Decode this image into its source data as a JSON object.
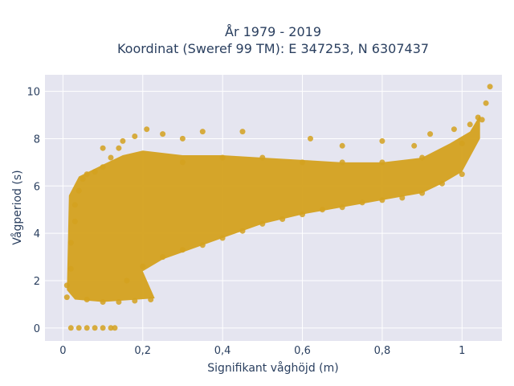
{
  "chart_data": {
    "type": "scatter",
    "title_lines": [
      "År 1979 - 2019",
      "Koordinat (Sweref 99 TM): E 347253, N 6307437"
    ],
    "xlabel": "Signifikant våghöjd (m)",
    "ylabel": "Vågperiod (s)",
    "xlim": [
      -0.045,
      1.1
    ],
    "ylim": [
      -0.55,
      10.7
    ],
    "x_ticks": [
      0,
      0.2,
      0.4,
      0.6,
      0.8,
      1
    ],
    "x_tick_labels": [
      "0",
      "0,2",
      "0,4",
      "0,6",
      "0,8",
      "1"
    ],
    "y_ticks": [
      0,
      2,
      4,
      6,
      8,
      10
    ],
    "y_tick_labels": [
      "0",
      "2",
      "4",
      "6",
      "8",
      "10"
    ],
    "grid": true,
    "colors": {
      "marker": "#d4a11e",
      "plot_bg": "#e5e5f0",
      "grid": "#ffffff",
      "text": "#2a3f5f"
    },
    "series": [
      {
        "points": [
          [
            0.02,
            0.0
          ],
          [
            0.04,
            0.0
          ],
          [
            0.06,
            0.0
          ],
          [
            0.08,
            0.0
          ],
          [
            0.1,
            0.0
          ],
          [
            0.12,
            0.0
          ],
          [
            0.13,
            0.0
          ],
          [
            0.01,
            1.3
          ],
          [
            0.01,
            1.8
          ],
          [
            0.02,
            2.5
          ],
          [
            0.02,
            3.6
          ],
          [
            0.03,
            4.5
          ],
          [
            0.03,
            5.2
          ],
          [
            0.04,
            5.8
          ],
          [
            0.05,
            6.3
          ],
          [
            0.06,
            6.5
          ],
          [
            0.08,
            6.6
          ],
          [
            0.1,
            6.8
          ],
          [
            0.12,
            7.2
          ],
          [
            0.14,
            7.6
          ],
          [
            0.15,
            7.9
          ],
          [
            0.18,
            8.1
          ],
          [
            0.21,
            8.4
          ],
          [
            0.25,
            8.2
          ],
          [
            0.3,
            8.0
          ],
          [
            0.35,
            8.3
          ],
          [
            0.45,
            8.3
          ],
          [
            0.62,
            8.0
          ],
          [
            0.7,
            7.7
          ],
          [
            0.8,
            7.9
          ],
          [
            0.88,
            7.7
          ],
          [
            0.92,
            8.2
          ],
          [
            0.98,
            8.4
          ],
          [
            1.02,
            8.6
          ],
          [
            1.04,
            8.9
          ],
          [
            1.06,
            9.5
          ],
          [
            1.07,
            10.2
          ],
          [
            0.06,
            1.2
          ],
          [
            0.1,
            1.1
          ],
          [
            0.14,
            1.1
          ],
          [
            0.18,
            1.15
          ],
          [
            0.22,
            1.2
          ],
          [
            0.1,
            7.6
          ],
          [
            0.16,
            2.0
          ],
          [
            0.2,
            2.6
          ],
          [
            0.25,
            3.0
          ],
          [
            0.3,
            3.3
          ],
          [
            0.35,
            3.5
          ],
          [
            0.4,
            3.8
          ],
          [
            0.45,
            4.1
          ],
          [
            0.5,
            4.4
          ],
          [
            0.55,
            4.6
          ],
          [
            0.6,
            4.8
          ],
          [
            0.65,
            5.0
          ],
          [
            0.7,
            5.1
          ],
          [
            0.75,
            5.3
          ],
          [
            0.8,
            5.4
          ],
          [
            0.85,
            5.5
          ],
          [
            0.9,
            5.7
          ],
          [
            0.95,
            6.1
          ],
          [
            1.0,
            6.5
          ],
          [
            0.3,
            7.0
          ],
          [
            0.4,
            7.2
          ],
          [
            0.5,
            7.2
          ],
          [
            0.6,
            7.0
          ],
          [
            0.7,
            7.0
          ],
          [
            0.8,
            7.0
          ],
          [
            0.9,
            7.2
          ],
          [
            1.0,
            7.8
          ],
          [
            1.05,
            8.8
          ]
        ]
      }
    ]
  }
}
